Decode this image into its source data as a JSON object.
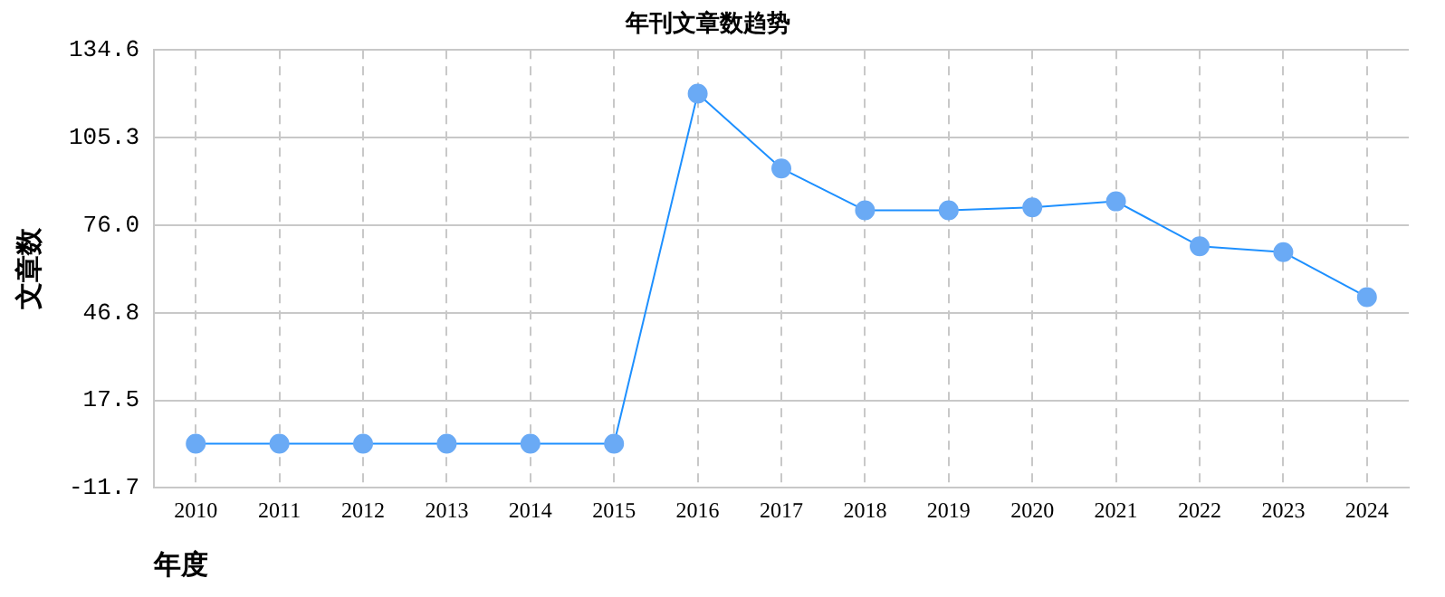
{
  "chart_data": {
    "type": "line",
    "title": "年刊文章数趋势",
    "xlabel": "年度",
    "ylabel": "文章数",
    "categories": [
      "2010",
      "2011",
      "2012",
      "2013",
      "2014",
      "2015",
      "2016",
      "2017",
      "2018",
      "2019",
      "2020",
      "2021",
      "2022",
      "2023",
      "2024"
    ],
    "series": [
      {
        "color": "#1e90ff",
        "values": [
          3,
          3,
          3,
          3,
          3,
          3,
          120,
          95,
          81,
          81,
          82,
          84,
          69,
          67,
          52
        ]
      }
    ],
    "ylim": [
      -11.7,
      134.6
    ],
    "yticks": [
      -11.7,
      17.5,
      46.8,
      {
        "value": 76,
        "label": "76.0"
      },
      105.3,
      134.6
    ],
    "grid": true,
    "legend": false,
    "marker": "circle",
    "line_style": "solid"
  }
}
